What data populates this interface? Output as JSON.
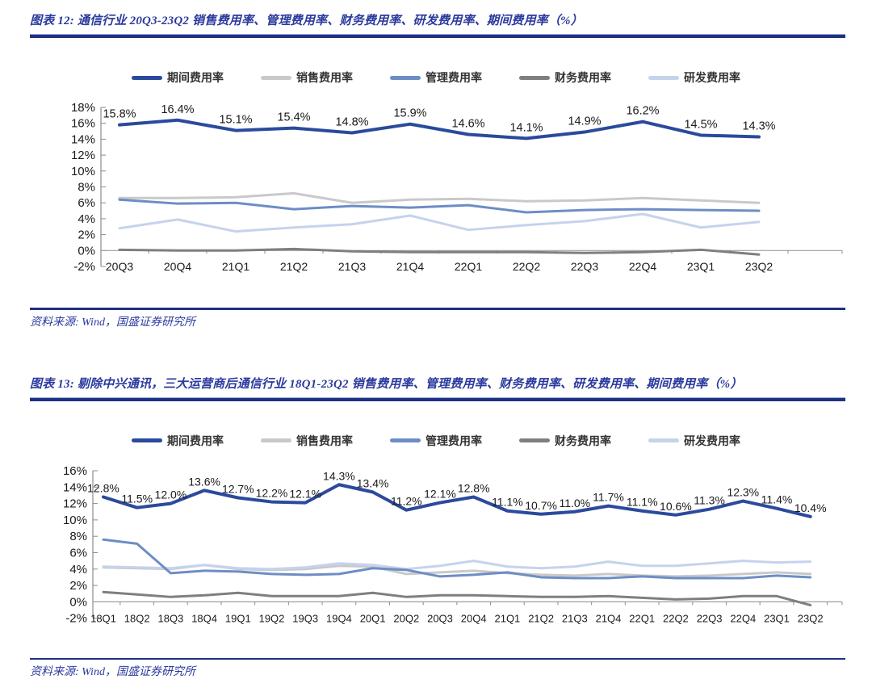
{
  "figure12": {
    "title": "图表 12: 通信行业 20Q3-23Q2 销售费用率、管理费用率、财务费用率、研发费用率、期间费用率（%）",
    "source": "资料来源: Wind，国盛证券研究所"
  },
  "figure13": {
    "title": "图表 13: 剔除中兴通讯，三大运营商后通信行业 18Q1-23Q2 销售费用率、管理费用率、财务费用率、研发费用率、期间费用率（%）",
    "source": "资料来源: Wind，国盛证券研究所"
  },
  "colors": {
    "title_blue": "#2B3A9E",
    "rule_navy": "#1F3182",
    "axis_gray": "#8C8C8C",
    "text_black": "#1A1A1A"
  },
  "chart_data": [
    {
      "type": "line",
      "title": "通信行业 20Q3-23Q2 费用率（%）",
      "categories": [
        "20Q3",
        "20Q4",
        "21Q1",
        "21Q2",
        "21Q3",
        "21Q4",
        "22Q1",
        "22Q2",
        "22Q3",
        "22Q4",
        "23Q1",
        "23Q2"
      ],
      "ylim": [
        -2,
        18
      ],
      "ytick_step": 2,
      "ytick_format": "percent",
      "grid": false,
      "legend_position": "top",
      "series": [
        {
          "id": "period",
          "name": "期间费用率",
          "color": "#2B4A9D",
          "line_width": 4,
          "show_labels": true,
          "values": [
            15.8,
            16.4,
            15.1,
            15.4,
            14.8,
            15.9,
            14.6,
            14.1,
            14.9,
            16.2,
            14.5,
            14.3
          ]
        },
        {
          "id": "sales",
          "name": "销售费用率",
          "color": "#C9C9C9",
          "line_width": 3,
          "show_labels": false,
          "values": [
            6.6,
            6.6,
            6.7,
            7.2,
            6.0,
            6.4,
            6.5,
            6.2,
            6.3,
            6.6,
            6.3,
            6.0
          ]
        },
        {
          "id": "admin",
          "name": "管理费用率",
          "color": "#6D8DC5",
          "line_width": 3,
          "show_labels": false,
          "values": [
            6.4,
            5.9,
            6.0,
            5.2,
            5.6,
            5.4,
            5.7,
            4.8,
            5.1,
            5.2,
            5.1,
            5.0
          ]
        },
        {
          "id": "finance",
          "name": "财务费用率",
          "color": "#7F7F7F",
          "line_width": 3,
          "show_labels": false,
          "values": [
            0.1,
            0.0,
            0.0,
            0.2,
            -0.1,
            -0.2,
            -0.2,
            -0.2,
            -0.3,
            -0.2,
            0.1,
            -0.5
          ]
        },
        {
          "id": "rd",
          "name": "研发费用率",
          "color": "#C5D3EC",
          "line_width": 3,
          "show_labels": false,
          "values": [
            2.8,
            3.9,
            2.4,
            2.9,
            3.3,
            4.4,
            2.6,
            3.2,
            3.7,
            4.6,
            2.9,
            3.6
          ]
        }
      ]
    },
    {
      "type": "line",
      "title": "剔除中兴通讯、三大运营商后通信行业 18Q1-23Q2 费用率（%）",
      "categories": [
        "18Q1",
        "18Q2",
        "18Q3",
        "18Q4",
        "19Q1",
        "19Q2",
        "19Q3",
        "19Q4",
        "20Q1",
        "20Q2",
        "20Q3",
        "20Q4",
        "21Q1",
        "21Q2",
        "21Q3",
        "21Q4",
        "22Q1",
        "22Q2",
        "22Q3",
        "22Q4",
        "23Q1",
        "23Q2"
      ],
      "ylim": [
        -2,
        16
      ],
      "ytick_step": 2,
      "ytick_format": "percent",
      "grid": false,
      "legend_position": "top",
      "series": [
        {
          "id": "period",
          "name": "期间费用率",
          "color": "#2B4A9D",
          "line_width": 4,
          "show_labels": true,
          "values": [
            12.8,
            11.5,
            12.0,
            13.6,
            12.7,
            12.2,
            12.1,
            14.3,
            13.4,
            11.2,
            12.1,
            12.8,
            11.1,
            10.7,
            11.0,
            11.7,
            11.1,
            10.6,
            11.3,
            12.3,
            11.4,
            10.4
          ]
        },
        {
          "id": "sales",
          "name": "销售费用率",
          "color": "#C9C9C9",
          "line_width": 3,
          "show_labels": false,
          "values": [
            4.2,
            4.1,
            4.0,
            4.5,
            4.0,
            3.9,
            4.0,
            4.4,
            4.3,
            3.4,
            3.6,
            3.8,
            3.5,
            3.3,
            3.2,
            3.4,
            3.2,
            3.1,
            3.2,
            3.4,
            3.6,
            3.4
          ]
        },
        {
          "id": "admin",
          "name": "管理费用率",
          "color": "#6D8DC5",
          "line_width": 3,
          "show_labels": false,
          "values": [
            7.6,
            7.1,
            3.5,
            3.8,
            3.7,
            3.4,
            3.3,
            3.4,
            4.1,
            3.9,
            3.1,
            3.3,
            3.6,
            3.0,
            2.9,
            2.9,
            3.1,
            2.9,
            2.9,
            2.9,
            3.2,
            3.0
          ]
        },
        {
          "id": "finance",
          "name": "财务费用率",
          "color": "#7F7F7F",
          "line_width": 3,
          "show_labels": false,
          "values": [
            1.2,
            0.9,
            0.6,
            0.8,
            1.1,
            0.7,
            0.7,
            0.7,
            1.1,
            0.6,
            0.8,
            0.8,
            0.7,
            0.6,
            0.6,
            0.7,
            0.5,
            0.3,
            0.4,
            0.7,
            0.7,
            -0.4
          ]
        },
        {
          "id": "rd",
          "name": "研发费用率",
          "color": "#C5D3EC",
          "line_width": 3,
          "show_labels": false,
          "values": [
            4.3,
            4.2,
            4.1,
            4.5,
            4.1,
            4.0,
            4.2,
            4.7,
            4.5,
            4.0,
            4.4,
            5.0,
            4.3,
            4.1,
            4.3,
            4.9,
            4.4,
            4.4,
            4.7,
            5.0,
            4.8,
            4.9
          ]
        }
      ]
    }
  ]
}
